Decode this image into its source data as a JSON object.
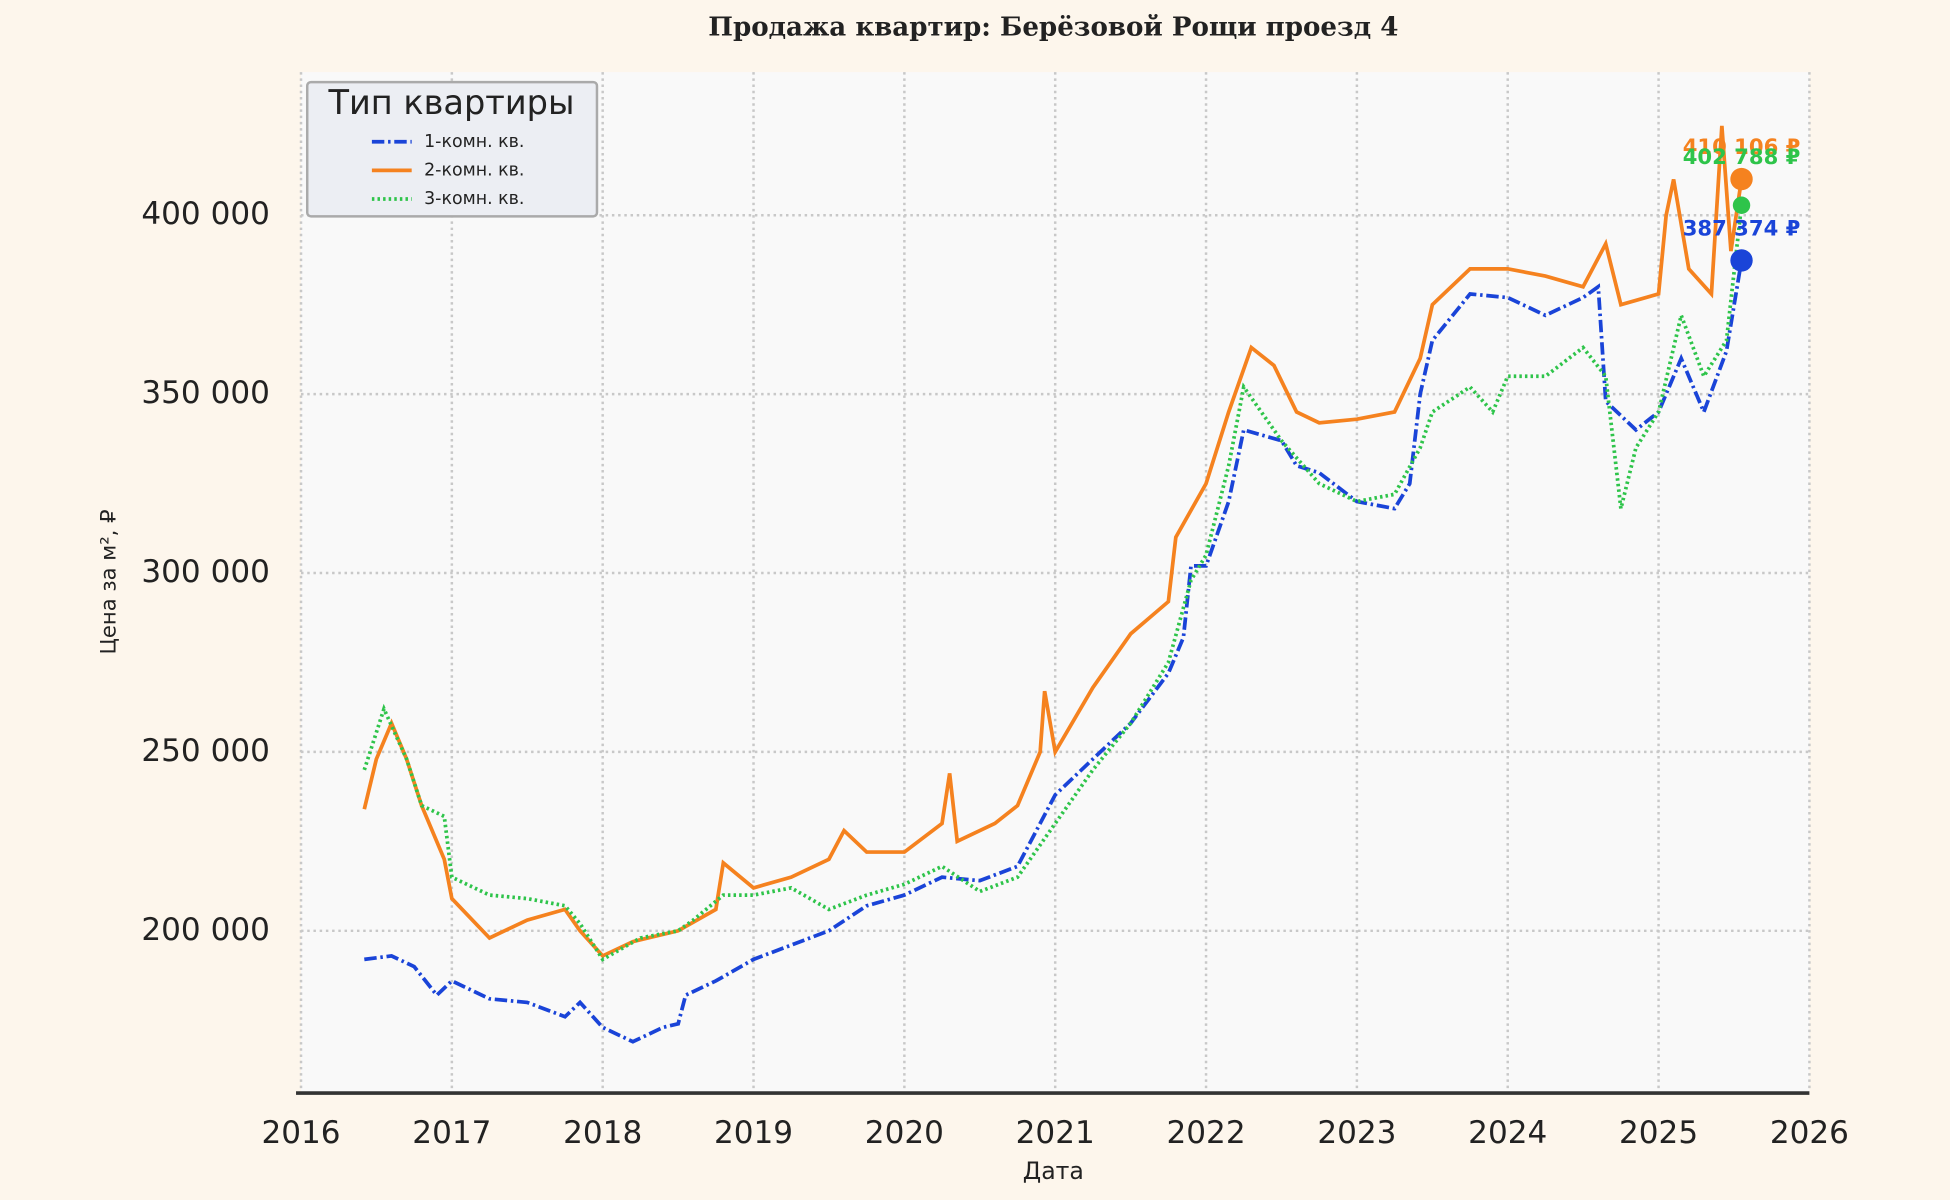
{
  "chart_data": {
    "type": "line",
    "title": "Продажа квартир: Берёзовой Рощи проезд 4",
    "xlabel": "Дата",
    "ylabel": "Цена за м², ₽",
    "legend_title": "Тип квартиры",
    "legend": "upper left",
    "grid": true,
    "xlim": [
      2016,
      2026
    ],
    "xticks": [
      2016,
      2017,
      2018,
      2019,
      2020,
      2021,
      2022,
      2023,
      2024,
      2025,
      2026
    ],
    "ylim": [
      155000,
      440000
    ],
    "yticks": [
      {
        "value": 200000,
        "label": "200 000"
      },
      {
        "value": 250000,
        "label": "250 000"
      },
      {
        "value": 300000,
        "label": "300 000"
      },
      {
        "value": 350000,
        "label": "350 000"
      },
      {
        "value": 400000,
        "label": "400 000"
      }
    ],
    "series": [
      {
        "name": "1-комн. кв.",
        "color": "#1a44d8",
        "linestyle": "dashdot",
        "x": [
          2016.42,
          2016.6,
          2016.75,
          2016.9,
          2017.0,
          2017.25,
          2017.5,
          2017.75,
          2017.85,
          2018.0,
          2018.2,
          2018.4,
          2018.5,
          2018.55,
          2018.75,
          2019.0,
          2019.25,
          2019.5,
          2019.75,
          2020.0,
          2020.25,
          2020.5,
          2020.75,
          2021.0,
          2021.25,
          2021.5,
          2021.75,
          2021.85,
          2021.9,
          2022.0,
          2022.15,
          2022.25,
          2022.5,
          2022.6,
          2022.75,
          2023.0,
          2023.25,
          2023.35,
          2023.42,
          2023.5,
          2023.75,
          2024.0,
          2024.25,
          2024.5,
          2024.6,
          2024.65,
          2024.85,
          2025.0,
          2025.15,
          2025.3,
          2025.45,
          2025.55
        ],
        "values": [
          192000,
          193000,
          190000,
          182000,
          186000,
          181000,
          180000,
          176000,
          180000,
          173000,
          169000,
          173000,
          174000,
          182000,
          186000,
          192000,
          196000,
          200000,
          207000,
          210000,
          215000,
          214000,
          218000,
          238000,
          248000,
          258000,
          272000,
          282000,
          302000,
          302000,
          320000,
          340000,
          337000,
          330000,
          328000,
          320000,
          318000,
          325000,
          350000,
          365000,
          378000,
          377000,
          372000,
          377000,
          380000,
          348000,
          340000,
          345000,
          360000,
          345000,
          362000,
          387374
        ]
      },
      {
        "name": "2-комн. кв.",
        "color": "#f5821f",
        "linestyle": "solid",
        "x": [
          2016.42,
          2016.5,
          2016.6,
          2016.7,
          2016.8,
          2016.95,
          2017.0,
          2017.25,
          2017.5,
          2017.75,
          2017.85,
          2018.0,
          2018.2,
          2018.5,
          2018.75,
          2018.8,
          2019.0,
          2019.25,
          2019.5,
          2019.6,
          2019.75,
          2020.0,
          2020.25,
          2020.3,
          2020.35,
          2020.6,
          2020.75,
          2020.9,
          2020.93,
          2021.0,
          2021.25,
          2021.5,
          2021.75,
          2021.8,
          2022.0,
          2022.15,
          2022.3,
          2022.45,
          2022.6,
          2022.75,
          2023.0,
          2023.25,
          2023.42,
          2023.5,
          2023.75,
          2024.0,
          2024.25,
          2024.5,
          2024.65,
          2024.75,
          2025.0,
          2025.05,
          2025.1,
          2025.2,
          2025.35,
          2025.42,
          2025.48,
          2025.55
        ],
        "values": [
          234000,
          248000,
          258000,
          248000,
          235000,
          220000,
          209000,
          198000,
          203000,
          206000,
          200000,
          193000,
          197000,
          200000,
          206000,
          219000,
          212000,
          215000,
          220000,
          228000,
          222000,
          222000,
          230000,
          244000,
          225000,
          230000,
          235000,
          250000,
          267000,
          250000,
          268000,
          283000,
          292000,
          310000,
          325000,
          345000,
          363000,
          358000,
          345000,
          342000,
          343000,
          345000,
          360000,
          375000,
          385000,
          385000,
          383000,
          380000,
          392000,
          375000,
          378000,
          400000,
          410000,
          385000,
          378000,
          425000,
          390000,
          410106
        ]
      },
      {
        "name": "3-комн. кв.",
        "color": "#2ec44a",
        "linestyle": "dotted",
        "x": [
          2016.42,
          2016.55,
          2016.7,
          2016.8,
          2016.95,
          2017.0,
          2017.25,
          2017.5,
          2017.75,
          2017.85,
          2018.0,
          2018.25,
          2018.5,
          2018.6,
          2018.8,
          2019.0,
          2019.25,
          2019.5,
          2019.75,
          2020.0,
          2020.25,
          2020.5,
          2020.75,
          2021.0,
          2021.25,
          2021.5,
          2021.75,
          2021.9,
          2022.0,
          2022.15,
          2022.25,
          2022.5,
          2022.75,
          2023.0,
          2023.25,
          2023.42,
          2023.5,
          2023.75,
          2023.9,
          2024.0,
          2024.25,
          2024.5,
          2024.65,
          2024.75,
          2024.85,
          2025.0,
          2025.15,
          2025.3,
          2025.45,
          2025.55
        ],
        "values": [
          245000,
          262000,
          248000,
          235000,
          232000,
          215000,
          210000,
          209000,
          207000,
          202000,
          192000,
          198000,
          200000,
          203000,
          210000,
          210000,
          212000,
          206000,
          210000,
          213000,
          218000,
          211000,
          215000,
          230000,
          245000,
          258000,
          275000,
          298000,
          305000,
          330000,
          352000,
          337000,
          325000,
          320000,
          322000,
          335000,
          345000,
          352000,
          345000,
          355000,
          355000,
          363000,
          355000,
          318000,
          335000,
          345000,
          372000,
          355000,
          365000,
          402788
        ]
      }
    ],
    "annotations": [
      {
        "text": "410 106 ₽",
        "x": 2025.55,
        "y": 410106,
        "color": "#f5821f"
      },
      {
        "text": "402 788 ₽",
        "x": 2025.55,
        "y": 402788,
        "color": "#2ec44a"
      },
      {
        "text": "387 374 ₽",
        "x": 2025.55,
        "y": 387374,
        "color": "#1a44d8"
      }
    ]
  }
}
